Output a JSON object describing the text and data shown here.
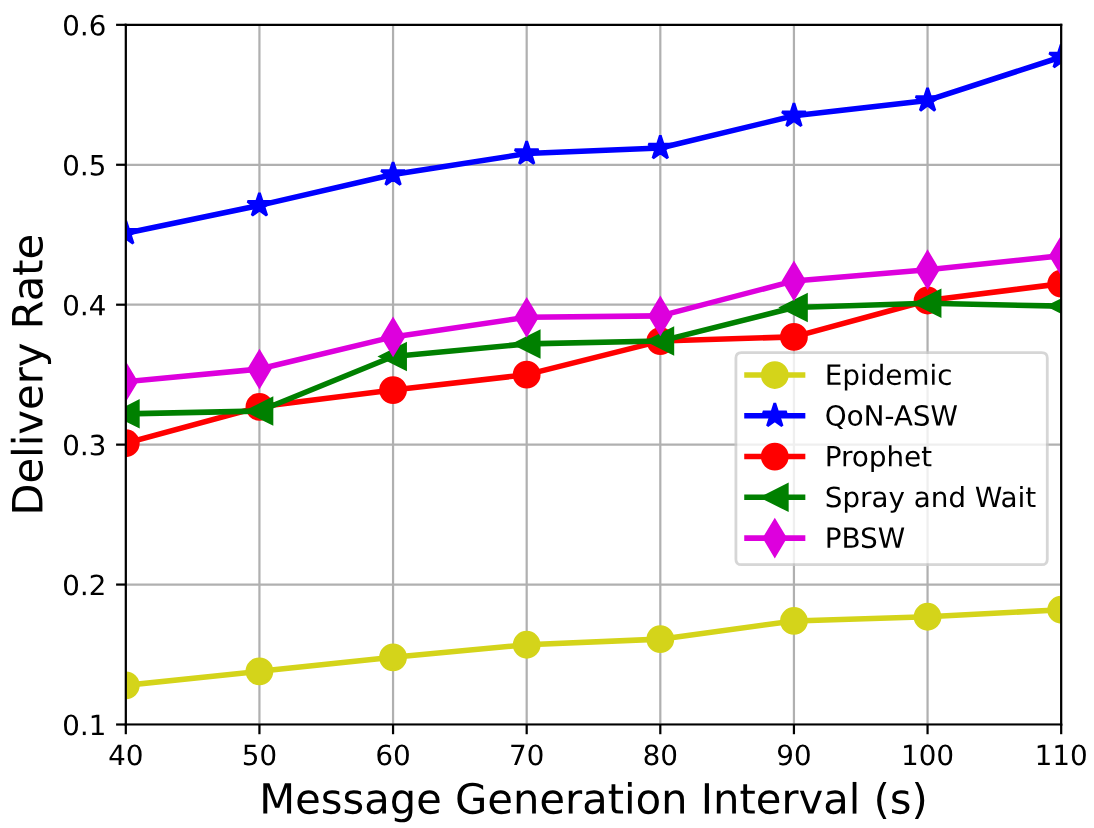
{
  "chart_data": {
    "type": "line",
    "xlabel": "Message Generation Interval (s)",
    "ylabel": "Delivery Rate",
    "x": [
      40,
      50,
      60,
      70,
      80,
      90,
      100,
      110
    ],
    "series": [
      {
        "name": "Epidemic",
        "color": "#d4d41a",
        "marker": "circle",
        "values": [
          0.128,
          0.138,
          0.148,
          0.157,
          0.161,
          0.174,
          0.177,
          0.182
        ]
      },
      {
        "name": "QoN-ASW",
        "color": "#0000ff",
        "marker": "star",
        "values": [
          0.451,
          0.471,
          0.493,
          0.508,
          0.512,
          0.535,
          0.546,
          0.577
        ]
      },
      {
        "name": "Prophet",
        "color": "#ff0000",
        "marker": "circle",
        "values": [
          0.301,
          0.327,
          0.339,
          0.35,
          0.374,
          0.377,
          0.403,
          0.415
        ]
      },
      {
        "name": "Spray and Wait",
        "color": "#008000",
        "marker": "triangle",
        "values": [
          0.322,
          0.324,
          0.363,
          0.372,
          0.374,
          0.398,
          0.401,
          0.399
        ]
      },
      {
        "name": "PBSW",
        "color": "#dd00dd",
        "marker": "diamond",
        "values": [
          0.345,
          0.354,
          0.377,
          0.391,
          0.392,
          0.417,
          0.425,
          0.435
        ]
      }
    ],
    "xlim": [
      40,
      110
    ],
    "xticks": [
      40,
      50,
      60,
      70,
      80,
      90,
      100,
      110
    ],
    "ylim": [
      0.1,
      0.6
    ],
    "yticks": [
      0.1,
      0.2,
      0.3,
      0.4,
      0.5,
      0.6
    ],
    "grid": true,
    "legend": "right",
    "line_style": "solid"
  }
}
